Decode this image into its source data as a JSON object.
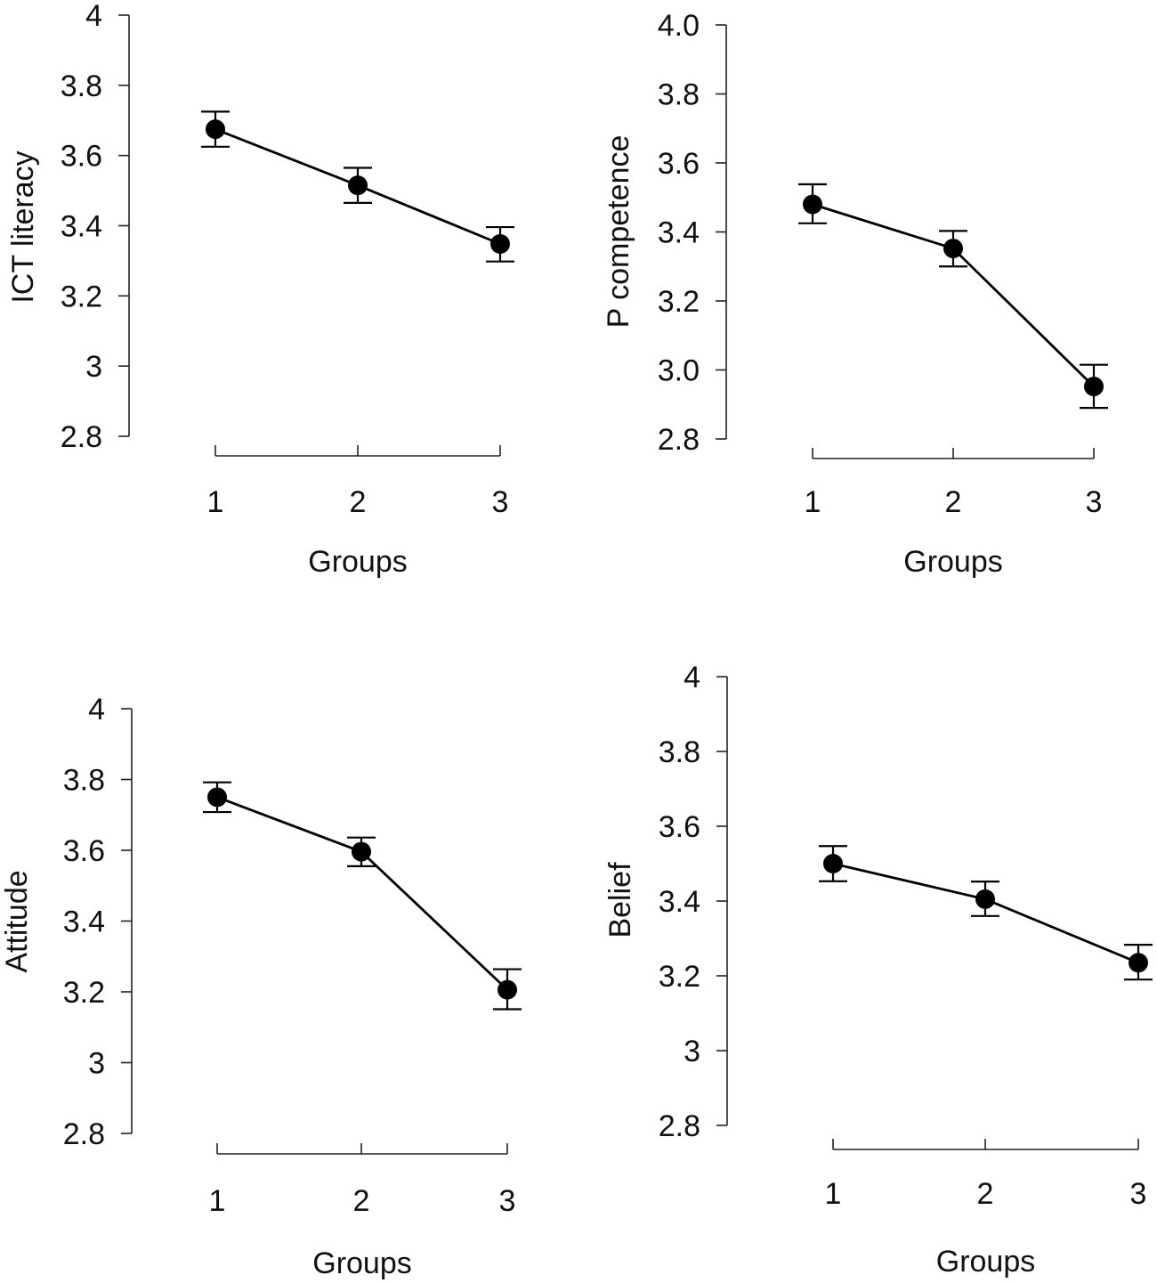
{
  "figure": {
    "colors": {
      "ink": "#000000",
      "axis": "#222222",
      "background": "#ffffff"
    }
  },
  "chart_data": [
    {
      "type": "line",
      "ylabel": "ICT literacy",
      "xlabel": "Groups",
      "categories": [
        "1",
        "2",
        "3"
      ],
      "values": [
        3.675,
        3.515,
        3.348
      ],
      "err_low": [
        3.625,
        3.465,
        3.298
      ],
      "err_high": [
        3.725,
        3.565,
        3.396
      ],
      "ylim": [
        2.8,
        4.0
      ],
      "y_ticks": [
        2.8,
        3.0,
        3.2,
        3.4,
        3.6,
        3.8,
        4.0
      ],
      "y_tick_labels": [
        "2.8",
        "3",
        "3.2",
        "3.4",
        "3.6",
        "3.8",
        "4"
      ]
    },
    {
      "type": "line",
      "ylabel": "P competence",
      "xlabel": "Groups",
      "categories": [
        "1",
        "2",
        "3"
      ],
      "values": [
        3.48,
        3.352,
        2.952
      ],
      "err_low": [
        3.425,
        3.3,
        2.89
      ],
      "err_high": [
        3.538,
        3.403,
        3.015
      ],
      "ylim": [
        2.8,
        4.0
      ],
      "y_ticks": [
        2.8,
        3.0,
        3.2,
        3.4,
        3.6,
        3.8,
        4.0
      ],
      "y_tick_labels": [
        "2.8",
        "3.0",
        "3.2",
        "3.4",
        "3.6",
        "3.8",
        "4.0"
      ]
    },
    {
      "type": "line",
      "ylabel": "Attitude",
      "xlabel": "Groups",
      "categories": [
        "1",
        "2",
        "3"
      ],
      "values": [
        3.75,
        3.596,
        3.206
      ],
      "err_low": [
        3.708,
        3.555,
        3.151
      ],
      "err_high": [
        3.792,
        3.636,
        3.264
      ],
      "ylim": [
        2.8,
        4.0
      ],
      "y_ticks": [
        2.8,
        3.0,
        3.2,
        3.4,
        3.6,
        3.8,
        4.0
      ],
      "y_tick_labels": [
        "2.8",
        "3",
        "3.2",
        "3.4",
        "3.6",
        "3.8",
        "4"
      ]
    },
    {
      "type": "line",
      "ylabel": "Belief",
      "xlabel": "Groups",
      "categories": [
        "1",
        "2",
        "3"
      ],
      "values": [
        3.5,
        3.405,
        3.235
      ],
      "err_low": [
        3.453,
        3.36,
        3.19
      ],
      "err_high": [
        3.547,
        3.452,
        3.283
      ],
      "ylim": [
        2.8,
        4.0
      ],
      "y_ticks": [
        2.8,
        3.0,
        3.2,
        3.4,
        3.6,
        3.8,
        4.0
      ],
      "y_tick_labels": [
        "2.8",
        "3",
        "3.2",
        "3.4",
        "3.6",
        "3.8",
        "4"
      ]
    }
  ]
}
